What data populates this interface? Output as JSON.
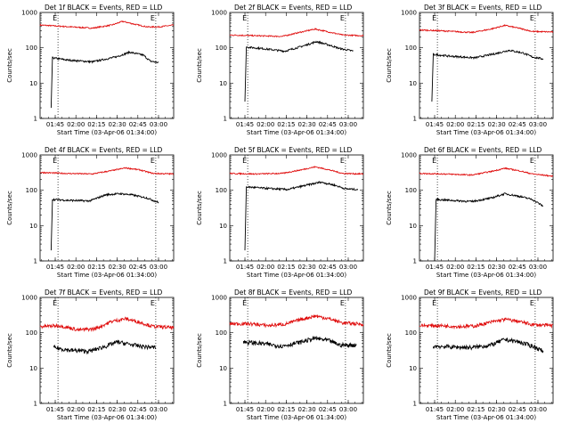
{
  "chart_data": {
    "type": "line",
    "yscale": "log",
    "ylim": [
      1,
      1000
    ],
    "yticks": [
      "1",
      "10",
      "100",
      "1000"
    ],
    "ylabel": "Counts/sec",
    "xlabel": "Start Time (03-Apr-06 01:34:00)",
    "xlim_minutes_after_start": [
      0,
      97
    ],
    "xticks": [
      "01:45",
      "02:00",
      "02:15",
      "02:30",
      "02:45",
      "03:00"
    ],
    "series_colors": {
      "events": "#000000",
      "lld": "#e01010"
    },
    "vertical_markers_time": [
      "01:47",
      "02:58"
    ],
    "marker_label": "E",
    "panels": [
      {
        "title": "Det 1f BLACK = Events, RED = LLD",
        "events_rise_time": "01:42",
        "events_start": 2,
        "events_knots": [
          [
            9,
            52
          ],
          [
            20,
            45
          ],
          [
            38,
            40
          ],
          [
            55,
            55
          ],
          [
            65,
            75
          ],
          [
            75,
            62
          ],
          [
            80,
            42
          ],
          [
            86,
            38
          ]
        ],
        "lld_knots": [
          [
            0,
            440
          ],
          [
            18,
            400
          ],
          [
            38,
            360
          ],
          [
            52,
            440
          ],
          [
            60,
            560
          ],
          [
            68,
            470
          ],
          [
            78,
            390
          ],
          [
            86,
            390
          ],
          [
            97,
            440
          ]
        ]
      },
      {
        "title": "Det 2f BLACK = Events, RED = LLD",
        "events_rise_time": "01:45",
        "events_start": 3,
        "events_knots": [
          [
            12,
            105
          ],
          [
            24,
            95
          ],
          [
            40,
            80
          ],
          [
            54,
            115
          ],
          [
            63,
            150
          ],
          [
            72,
            120
          ],
          [
            80,
            95
          ],
          [
            90,
            80
          ]
        ],
        "lld_knots": [
          [
            0,
            230
          ],
          [
            18,
            220
          ],
          [
            38,
            210
          ],
          [
            52,
            280
          ],
          [
            62,
            340
          ],
          [
            72,
            280
          ],
          [
            82,
            230
          ],
          [
            97,
            220
          ]
        ]
      },
      {
        "title": "Det 3f BLACK = Events, RED = LLD",
        "events_rise_time": "01:43",
        "events_start": 3,
        "events_knots": [
          [
            10,
            65
          ],
          [
            22,
            58
          ],
          [
            40,
            52
          ],
          [
            55,
            68
          ],
          [
            65,
            85
          ],
          [
            75,
            72
          ],
          [
            82,
            55
          ],
          [
            90,
            48
          ]
        ],
        "lld_knots": [
          [
            0,
            320
          ],
          [
            18,
            300
          ],
          [
            38,
            270
          ],
          [
            52,
            340
          ],
          [
            62,
            430
          ],
          [
            72,
            360
          ],
          [
            82,
            290
          ],
          [
            97,
            280
          ]
        ]
      },
      {
        "title": "Det 4f BLACK = Events, RED = LLD",
        "events_rise_time": "01:42",
        "events_start": 2,
        "events_knots": [
          [
            9,
            55
          ],
          [
            20,
            52
          ],
          [
            36,
            50
          ],
          [
            48,
            75
          ],
          [
            58,
            80
          ],
          [
            66,
            75
          ],
          [
            78,
            60
          ],
          [
            86,
            45
          ]
        ],
        "lld_knots": [
          [
            0,
            320
          ],
          [
            18,
            300
          ],
          [
            38,
            290
          ],
          [
            52,
            360
          ],
          [
            62,
            430
          ],
          [
            72,
            380
          ],
          [
            82,
            300
          ],
          [
            97,
            290
          ]
        ]
      },
      {
        "title": "Det 5f BLACK = Events, RED = LLD",
        "events_rise_time": "01:45",
        "events_start": 2,
        "events_knots": [
          [
            12,
            125
          ],
          [
            24,
            115
          ],
          [
            42,
            105
          ],
          [
            56,
            140
          ],
          [
            66,
            170
          ],
          [
            76,
            140
          ],
          [
            84,
            110
          ],
          [
            93,
            105
          ]
        ],
        "lld_knots": [
          [
            0,
            300
          ],
          [
            18,
            290
          ],
          [
            38,
            300
          ],
          [
            52,
            380
          ],
          [
            62,
            460
          ],
          [
            72,
            380
          ],
          [
            82,
            300
          ],
          [
            97,
            290
          ]
        ]
      },
      {
        "title": "Det 6f BLACK = Events, RED = LLD",
        "events_rise_time": "01:45",
        "events_start": 1,
        "events_knots": [
          [
            12,
            55
          ],
          [
            22,
            52
          ],
          [
            38,
            48
          ],
          [
            52,
            60
          ],
          [
            62,
            80
          ],
          [
            72,
            68
          ],
          [
            82,
            55
          ],
          [
            90,
            35
          ]
        ],
        "lld_knots": [
          [
            0,
            300
          ],
          [
            18,
            290
          ],
          [
            38,
            270
          ],
          [
            52,
            340
          ],
          [
            62,
            420
          ],
          [
            72,
            360
          ],
          [
            82,
            290
          ],
          [
            97,
            250
          ]
        ]
      },
      {
        "title": "Det 7f BLACK = Events, RED = LLD",
        "events_rise_time": "01:44",
        "events_start": 40,
        "events_knots": [
          [
            10,
            38
          ],
          [
            22,
            32
          ],
          [
            36,
            30
          ],
          [
            48,
            42
          ],
          [
            56,
            55
          ],
          [
            64,
            48
          ],
          [
            72,
            42
          ],
          [
            84,
            38
          ]
        ],
        "lld_knots": [
          [
            0,
            150
          ],
          [
            14,
            160
          ],
          [
            28,
            120
          ],
          [
            40,
            130
          ],
          [
            52,
            210
          ],
          [
            62,
            250
          ],
          [
            72,
            200
          ],
          [
            82,
            150
          ],
          [
            97,
            140
          ]
        ]
      },
      {
        "title": "Det 8f BLACK = Events, RED = LLD",
        "events_rise_time": "01:44",
        "events_start": 50,
        "events_knots": [
          [
            10,
            55
          ],
          [
            22,
            50
          ],
          [
            38,
            42
          ],
          [
            52,
            55
          ],
          [
            62,
            70
          ],
          [
            72,
            60
          ],
          [
            80,
            45
          ],
          [
            92,
            45
          ]
        ],
        "lld_knots": [
          [
            0,
            180
          ],
          [
            14,
            180
          ],
          [
            28,
            160
          ],
          [
            40,
            175
          ],
          [
            52,
            240
          ],
          [
            62,
            300
          ],
          [
            72,
            250
          ],
          [
            82,
            190
          ],
          [
            97,
            175
          ]
        ]
      },
      {
        "title": "Det 9f BLACK = Events, RED = LLD",
        "events_rise_time": "01:44",
        "events_start": 40,
        "events_knots": [
          [
            10,
            42
          ],
          [
            22,
            40
          ],
          [
            38,
            38
          ],
          [
            52,
            45
          ],
          [
            62,
            65
          ],
          [
            72,
            55
          ],
          [
            82,
            42
          ],
          [
            90,
            30
          ]
        ],
        "lld_knots": [
          [
            0,
            160
          ],
          [
            14,
            160
          ],
          [
            28,
            150
          ],
          [
            40,
            155
          ],
          [
            52,
            200
          ],
          [
            62,
            240
          ],
          [
            72,
            210
          ],
          [
            82,
            170
          ],
          [
            97,
            160
          ]
        ]
      }
    ]
  }
}
